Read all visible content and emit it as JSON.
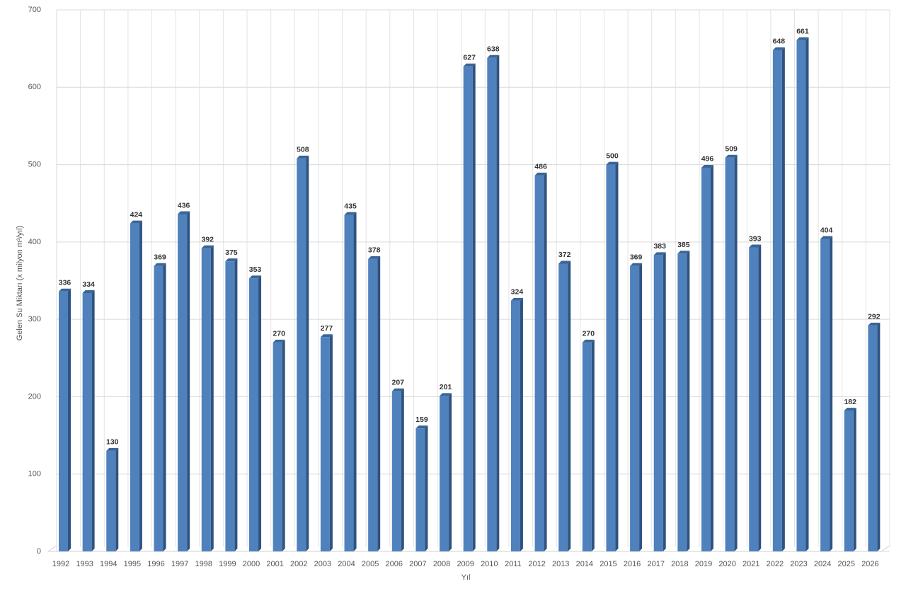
{
  "chart_data": {
    "type": "bar",
    "x_label": "Yıl",
    "y_label": "Gelen Su Miktarı (x milyon m³/yıl)",
    "categories": [
      "1992",
      "1993",
      "1994",
      "1995",
      "1996",
      "1997",
      "1998",
      "1999",
      "2000",
      "2001",
      "2002",
      "2003",
      "2004",
      "2005",
      "2006",
      "2007",
      "2008",
      "2009",
      "2010",
      "2011",
      "2012",
      "2013",
      "2014",
      "2015",
      "2016",
      "2017",
      "2018",
      "2019",
      "2020",
      "2021",
      "2022",
      "2023",
      "2024",
      "2025",
      "2026"
    ],
    "values": [
      336,
      334,
      130,
      424,
      369,
      436,
      392,
      375,
      353,
      270,
      508,
      277,
      435,
      378,
      207,
      159,
      201,
      627,
      638,
      324,
      486,
      372,
      270,
      500,
      369,
      383,
      385,
      496,
      509,
      393,
      648,
      661,
      404,
      182,
      292
    ],
    "color": "#4f81bd",
    "ylim": [
      0,
      700
    ],
    "yticks": [
      0,
      100,
      200,
      300,
      400,
      500,
      600,
      700
    ],
    "grid": true
  }
}
